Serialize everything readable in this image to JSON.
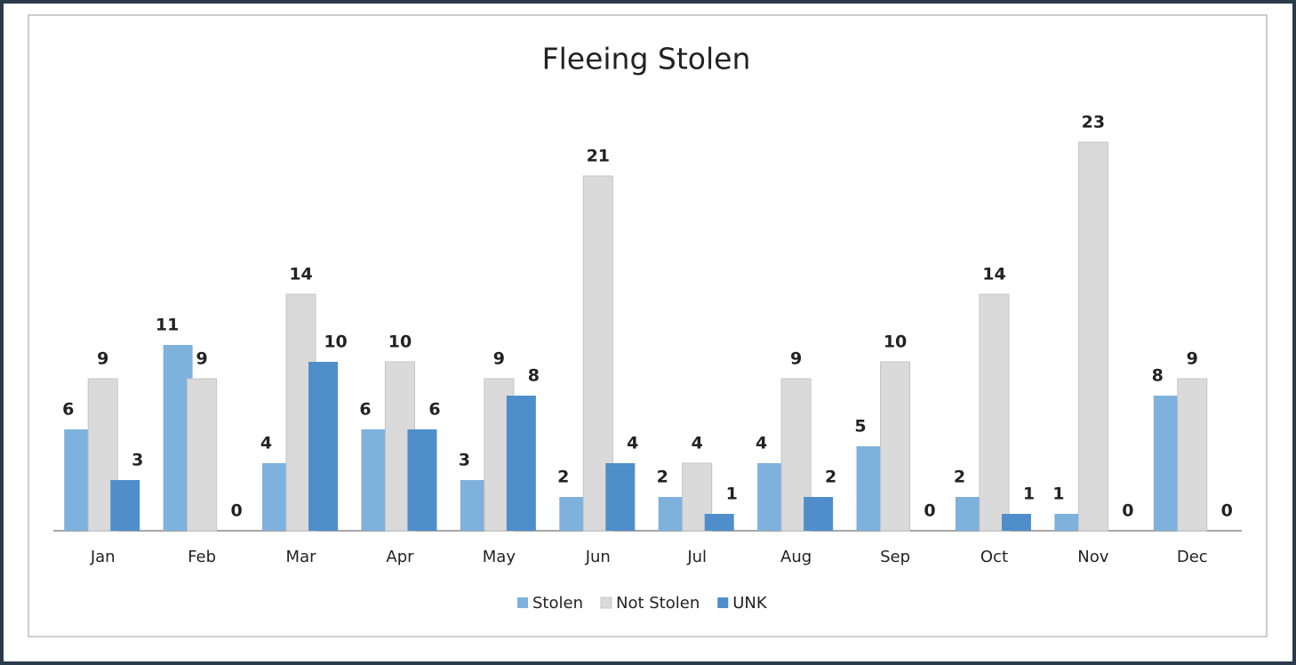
{
  "chart_data": {
    "type": "bar",
    "title": "Fleeing Stolen",
    "categories": [
      "Jan",
      "Feb",
      "Mar",
      "Apr",
      "May",
      "Jun",
      "Jul",
      "Aug",
      "Sep",
      "Oct",
      "Nov",
      "Dec"
    ],
    "series": [
      {
        "name": "Stolen",
        "color": "#7eb1dc",
        "values": [
          6,
          11,
          4,
          6,
          3,
          2,
          2,
          4,
          5,
          2,
          1,
          8
        ]
      },
      {
        "name": "Not Stolen",
        "color": "#dadada",
        "values": [
          9,
          9,
          14,
          10,
          9,
          21,
          4,
          9,
          10,
          14,
          23,
          9
        ]
      },
      {
        "name": "UNK",
        "color": "#4f8ecb",
        "values": [
          3,
          0,
          10,
          6,
          8,
          4,
          1,
          2,
          0,
          1,
          0,
          0
        ]
      }
    ]
  }
}
